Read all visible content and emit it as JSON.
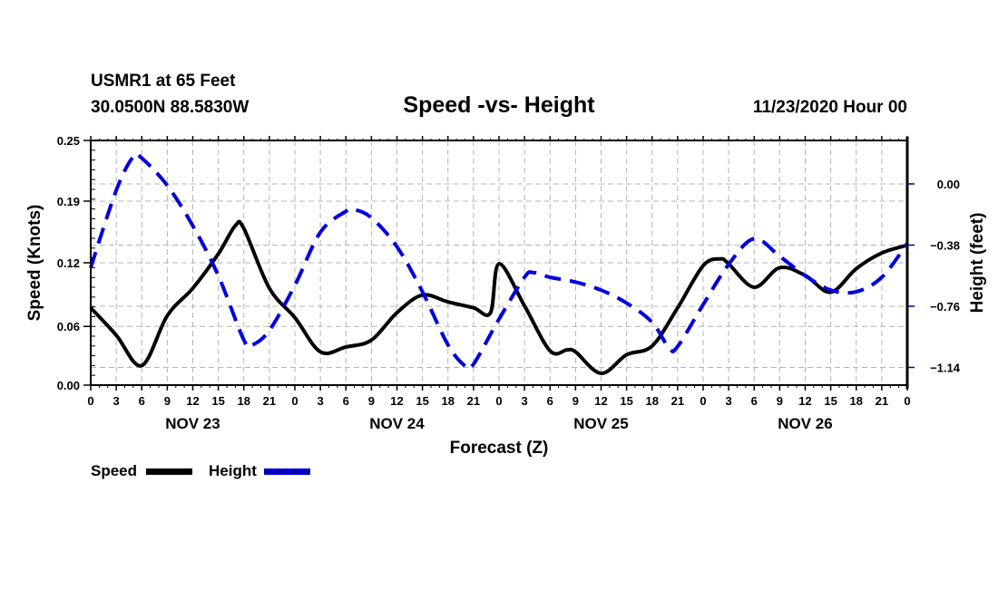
{
  "chart_data": {
    "type": "line",
    "title": "Speed -vs- Height",
    "station": "USMR1 at 65 Feet",
    "location": "30.0500N 88.5830W",
    "run": "11/23/2020 Hour 00",
    "xlabel": "Forecast (Z)",
    "ylabel": "Speed (Knots)",
    "y2label": "Height (feet)",
    "x_unit": "forecast hour",
    "xlim": [
      0,
      96
    ],
    "ylim": [
      0,
      0.25
    ],
    "y2lim": [
      -1.25,
      0.27
    ],
    "x_tick_labels": [
      "0",
      "3",
      "6",
      "9",
      "12",
      "15",
      "18",
      "21",
      "0",
      "3",
      "6",
      "9",
      "12",
      "15",
      "18",
      "21",
      "0",
      "3",
      "6",
      "9",
      "12",
      "15",
      "18",
      "21",
      "0",
      "3",
      "6",
      "9",
      "12",
      "15",
      "18",
      "21",
      "0"
    ],
    "x_tick_hours": [
      0,
      3,
      6,
      9,
      12,
      15,
      18,
      21,
      24,
      27,
      30,
      33,
      36,
      39,
      42,
      45,
      48,
      51,
      54,
      57,
      60,
      63,
      66,
      69,
      72,
      75,
      78,
      81,
      84,
      87,
      90,
      93,
      96
    ],
    "day_labels": [
      {
        "label": "NOV 23",
        "hour": 12
      },
      {
        "label": "NOV 24",
        "hour": 36
      },
      {
        "label": "NOV 25",
        "hour": 60
      },
      {
        "label": "NOV 26",
        "hour": 84
      }
    ],
    "y_ticks": [
      {
        "value": 0.0,
        "label": "0.00"
      },
      {
        "value": 0.06,
        "label": "0.06"
      },
      {
        "value": 0.125,
        "label": "0.12"
      },
      {
        "value": 0.188,
        "label": "0.19"
      },
      {
        "value": 0.25,
        "label": "0.25"
      }
    ],
    "y2_ticks": [
      {
        "value": 0.0,
        "label": "0.00"
      },
      {
        "value": -0.38,
        "label": "−0.38"
      },
      {
        "value": -0.76,
        "label": "−0.76"
      },
      {
        "value": -1.14,
        "label": "−1.14"
      }
    ],
    "grid": true,
    "legend_position": "bottom-left",
    "series": [
      {
        "name": "Speed",
        "axis": "left",
        "color": "#000000",
        "style": "solid",
        "x": [
          0,
          3,
          6,
          9,
          12,
          15,
          17,
          18,
          21,
          24,
          27,
          30,
          33,
          36,
          39,
          42,
          45,
          47,
          48,
          51,
          54,
          56,
          57,
          60,
          63,
          66,
          69,
          72,
          74,
          75,
          78,
          81,
          84,
          87,
          90,
          93,
          96
        ],
        "values": [
          0.079,
          0.051,
          0.02,
          0.071,
          0.099,
          0.134,
          0.163,
          0.16,
          0.099,
          0.069,
          0.034,
          0.039,
          0.046,
          0.074,
          0.092,
          0.085,
          0.079,
          0.074,
          0.124,
          0.081,
          0.035,
          0.036,
          0.034,
          0.012,
          0.031,
          0.04,
          0.079,
          0.122,
          0.129,
          0.124,
          0.1,
          0.12,
          0.112,
          0.095,
          0.119,
          0.135,
          0.143
        ]
      },
      {
        "name": "Height",
        "axis": "right",
        "color": "#0000dd",
        "style": "dashed",
        "x": [
          0,
          3,
          5,
          6,
          9,
          12,
          15,
          18,
          19,
          21,
          24,
          27,
          30,
          31,
          33,
          36,
          39,
          42,
          44,
          45,
          48,
          51,
          52,
          54,
          57,
          60,
          63,
          66,
          68,
          69,
          72,
          75,
          78,
          81,
          84,
          87,
          90,
          93,
          96
        ],
        "values": [
          -0.52,
          -0.04,
          0.17,
          0.16,
          -0.01,
          -0.26,
          -0.57,
          -0.97,
          -1.0,
          -0.91,
          -0.63,
          -0.3,
          -0.17,
          -0.16,
          -0.21,
          -0.39,
          -0.67,
          -1.0,
          -1.13,
          -1.12,
          -0.84,
          -0.58,
          -0.55,
          -0.58,
          -0.61,
          -0.66,
          -0.74,
          -0.86,
          -1.02,
          -1.01,
          -0.75,
          -0.5,
          -0.34,
          -0.45,
          -0.57,
          -0.66,
          -0.67,
          -0.58,
          -0.37
        ]
      }
    ]
  }
}
